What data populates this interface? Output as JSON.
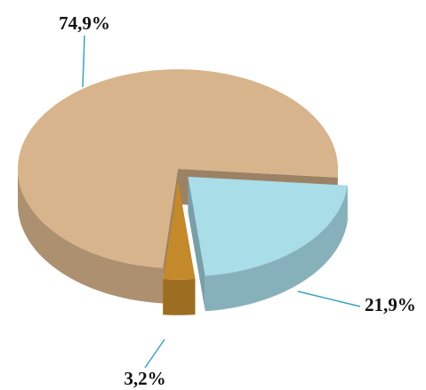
{
  "chart_data": {
    "type": "pie",
    "values": [
      74.9,
      21.9,
      3.2
    ],
    "value_labels": [
      "74,9%",
      "21,9%",
      "3,2%"
    ],
    "colors": [
      "#d8b48c",
      "#a9dde8",
      "#c4892a"
    ]
  }
}
